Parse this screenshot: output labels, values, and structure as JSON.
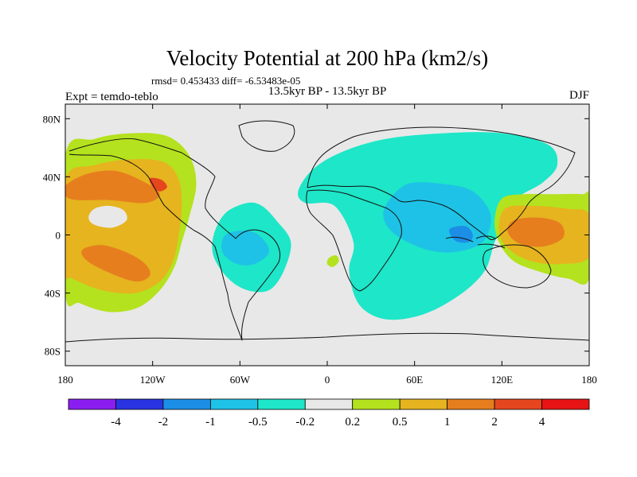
{
  "chart_data": {
    "type": "contour-map",
    "title": "Velocity Potential at 200 hPa (km2/s)",
    "stats": "rmsd= 0.453433  diff= -6.53483e-05",
    "center_label": "13.5kyr BP - 13.5kyr BP",
    "left_label": "Expt = temdo-teblo",
    "right_label": "DJF",
    "lon_range": [
      -180,
      180
    ],
    "lat_range": [
      -90,
      90
    ],
    "lon_ticks": [
      {
        "value": -180,
        "label": "180"
      },
      {
        "value": -120,
        "label": "120W"
      },
      {
        "value": -60,
        "label": "60W"
      },
      {
        "value": 0,
        "label": "0"
      },
      {
        "value": 60,
        "label": "60E"
      },
      {
        "value": 120,
        "label": "120E"
      },
      {
        "value": 180,
        "label": "180"
      }
    ],
    "lat_ticks": [
      {
        "value": 80,
        "label": "80N"
      },
      {
        "value": 40,
        "label": "40N"
      },
      {
        "value": 0,
        "label": "0"
      },
      {
        "value": -40,
        "label": "40S"
      },
      {
        "value": -80,
        "label": "80S"
      }
    ],
    "colorbar": {
      "levels": [
        "-4",
        "-2",
        "-1",
        "-0.5",
        "-0.2",
        "0.2",
        "0.5",
        "1",
        "2",
        "4"
      ],
      "colors": [
        "#8a1ef0",
        "#2a33e0",
        "#1c8ee6",
        "#1ec2e6",
        "#1ee6c8",
        "#e8e8e8",
        "#b4e21e",
        "#e6b41e",
        "#e67e1e",
        "#e6461e",
        "#e61414"
      ]
    },
    "regions": [
      {
        "name": "east-pacific-positive-outer",
        "level": "0.2-0.5",
        "color": "#b4e21e",
        "outline": [
          [
            -180,
            55
          ],
          [
            -160,
            66
          ],
          [
            -135,
            70
          ],
          [
            -110,
            68
          ],
          [
            -95,
            55
          ],
          [
            -90,
            35
          ],
          [
            -95,
            12
          ],
          [
            -100,
            -5
          ],
          [
            -105,
            -22
          ],
          [
            -115,
            -38
          ],
          [
            -130,
            -50
          ],
          [
            -150,
            -53
          ],
          [
            -170,
            -47
          ],
          [
            -180,
            -40
          ]
        ]
      },
      {
        "name": "east-pacific-positive-mid",
        "level": "0.5-1",
        "color": "#e6b41e",
        "outline": [
          [
            -180,
            38
          ],
          [
            -160,
            48
          ],
          [
            -135,
            52
          ],
          [
            -112,
            50
          ],
          [
            -102,
            38
          ],
          [
            -100,
            20
          ],
          [
            -102,
            0
          ],
          [
            -106,
            -18
          ],
          [
            -115,
            -32
          ],
          [
            -132,
            -40
          ],
          [
            -155,
            -38
          ],
          [
            -175,
            -30
          ],
          [
            -180,
            -24
          ]
        ]
      },
      {
        "name": "north-pacific-core",
        "level": "1-2",
        "color": "#e67e1e",
        "outline": [
          [
            -180,
            34
          ],
          [
            -165,
            42
          ],
          [
            -145,
            44
          ],
          [
            -125,
            36
          ],
          [
            -115,
            28
          ],
          [
            -125,
            22
          ],
          [
            -150,
            24
          ],
          [
            -172,
            24
          ],
          [
            -180,
            27
          ]
        ]
      },
      {
        "name": "south-pacific-core",
        "level": "1-2",
        "color": "#e67e1e",
        "outline": [
          [
            -168,
            -10
          ],
          [
            -155,
            -7
          ],
          [
            -138,
            -12
          ],
          [
            -125,
            -20
          ],
          [
            -122,
            -28
          ],
          [
            -132,
            -32
          ],
          [
            -152,
            -25
          ],
          [
            -166,
            -17
          ]
        ]
      },
      {
        "name": "rocky-mountain-max",
        "level": "2-4",
        "color": "#e6461e",
        "outline": [
          [
            -122,
            39
          ],
          [
            -114,
            38
          ],
          [
            -110,
            33
          ],
          [
            -115,
            30
          ],
          [
            -120,
            33
          ]
        ]
      },
      {
        "name": "central-pacific-hole",
        "level": "-0.2-0.2",
        "color": "#e8e8e8",
        "outline": [
          [
            -160,
            18
          ],
          [
            -150,
            20
          ],
          [
            -140,
            17
          ],
          [
            -138,
            10
          ],
          [
            -148,
            5
          ],
          [
            -160,
            7
          ],
          [
            -164,
            12
          ]
        ]
      },
      {
        "name": "south-america-negative",
        "level": "-0.5 to -0.2",
        "color": "#1ee6c8",
        "outline": [
          [
            -70,
            15
          ],
          [
            -55,
            22
          ],
          [
            -45,
            20
          ],
          [
            -35,
            10
          ],
          [
            -25,
            -5
          ],
          [
            -30,
            -25
          ],
          [
            -40,
            -38
          ],
          [
            -55,
            -38
          ],
          [
            -68,
            -30
          ],
          [
            -78,
            -15
          ],
          [
            -78,
            0
          ]
        ]
      },
      {
        "name": "south-america-core",
        "level": "-1 to -0.5",
        "color": "#1ec2e6",
        "outline": [
          [
            -70,
            0
          ],
          [
            -55,
            3
          ],
          [
            -45,
            -2
          ],
          [
            -40,
            -12
          ],
          [
            -50,
            -20
          ],
          [
            -62,
            -20
          ],
          [
            -72,
            -12
          ]
        ]
      },
      {
        "name": "eurasia-indian-negative",
        "level": "-0.5 to -0.2",
        "color": "#1ee6c8",
        "outline": [
          [
            -20,
            30
          ],
          [
            -10,
            45
          ],
          [
            10,
            57
          ],
          [
            40,
            66
          ],
          [
            80,
            70
          ],
          [
            120,
            70
          ],
          [
            152,
            62
          ],
          [
            158,
            48
          ],
          [
            148,
            36
          ],
          [
            130,
            25
          ],
          [
            122,
            10
          ],
          [
            115,
            -5
          ],
          [
            108,
            -25
          ],
          [
            90,
            -42
          ],
          [
            65,
            -55
          ],
          [
            40,
            -58
          ],
          [
            22,
            -48
          ],
          [
            15,
            -25
          ],
          [
            18,
            -5
          ],
          [
            5,
            20
          ],
          [
            -15,
            22
          ]
        ]
      },
      {
        "name": "indian-ocean-core",
        "level": "-1 to -0.5",
        "color": "#1ec2e6",
        "outline": [
          [
            40,
            20
          ],
          [
            55,
            35
          ],
          [
            80,
            35
          ],
          [
            100,
            30
          ],
          [
            112,
            15
          ],
          [
            110,
            0
          ],
          [
            102,
            -8
          ],
          [
            85,
            -12
          ],
          [
            68,
            -10
          ],
          [
            50,
            -2
          ],
          [
            40,
            8
          ]
        ]
      },
      {
        "name": "bay-of-bengal-min",
        "level": "-2 to -1",
        "color": "#1c8ee6",
        "outline": [
          [
            84,
            4
          ],
          [
            95,
            6
          ],
          [
            100,
            0
          ],
          [
            97,
            -5
          ],
          [
            88,
            -4
          ]
        ]
      },
      {
        "name": "west-pacific-positive-outer",
        "level": "0.2-0.5",
        "color": "#b4e21e",
        "outline": [
          [
            120,
            25
          ],
          [
            135,
            28
          ],
          [
            155,
            28
          ],
          [
            175,
            28
          ],
          [
            180,
            25
          ],
          [
            180,
            -30
          ],
          [
            165,
            -30
          ],
          [
            145,
            -25
          ],
          [
            128,
            -18
          ],
          [
            118,
            -5
          ],
          [
            115,
            10
          ]
        ]
      },
      {
        "name": "west-pacific-positive-mid",
        "level": "0.5-1",
        "color": "#e6b41e",
        "outline": [
          [
            122,
            18
          ],
          [
            140,
            20
          ],
          [
            165,
            18
          ],
          [
            180,
            14
          ],
          [
            180,
            -15
          ],
          [
            160,
            -20
          ],
          [
            140,
            -18
          ],
          [
            125,
            -10
          ],
          [
            118,
            2
          ]
        ]
      },
      {
        "name": "west-pacific-core",
        "level": "1-2",
        "color": "#e67e1e",
        "outline": [
          [
            128,
            10
          ],
          [
            145,
            12
          ],
          [
            160,
            8
          ],
          [
            162,
            -2
          ],
          [
            148,
            -8
          ],
          [
            132,
            -6
          ],
          [
            124,
            2
          ]
        ]
      },
      {
        "name": "african-patch",
        "level": "0.2-0.5",
        "color": "#b4e21e",
        "outline": [
          [
            1,
            -16
          ],
          [
            6,
            -14
          ],
          [
            8,
            -18
          ],
          [
            4,
            -22
          ],
          [
            0,
            -20
          ]
        ]
      }
    ]
  }
}
